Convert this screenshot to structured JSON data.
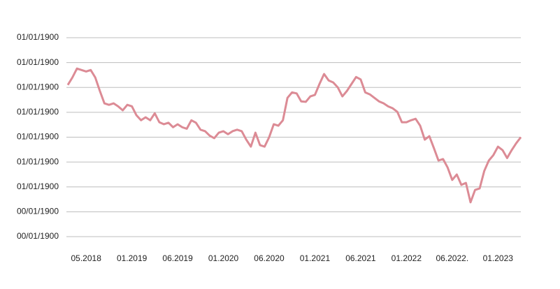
{
  "chart_data": {
    "type": "line",
    "categories": [
      null,
      null,
      null,
      null,
      "05.2018",
      null,
      null,
      null,
      null,
      null,
      null,
      null,
      null,
      null,
      "01.2019",
      null,
      null,
      null,
      null,
      null,
      null,
      null,
      null,
      null,
      "06.2019",
      null,
      null,
      null,
      null,
      null,
      null,
      null,
      null,
      null,
      "01.2020",
      null,
      null,
      null,
      null,
      null,
      null,
      null,
      null,
      null,
      "06.2020",
      null,
      null,
      null,
      null,
      null,
      null,
      null,
      null,
      null,
      "01.2021",
      null,
      null,
      null,
      null,
      null,
      null,
      null,
      null,
      null,
      "06.2021",
      null,
      null,
      null,
      null,
      null,
      null,
      null,
      null,
      null,
      "01.2022",
      null,
      null,
      null,
      null,
      null,
      null,
      null,
      null,
      null,
      "06.2022.",
      null,
      null,
      null,
      null,
      null,
      null,
      null,
      null,
      null,
      "01.2023",
      null,
      null,
      null,
      null,
      null
    ],
    "values": [
      1.205,
      1.22,
      1.238,
      1.235,
      1.232,
      1.235,
      1.22,
      1.193,
      1.168,
      1.165,
      1.168,
      1.162,
      1.154,
      1.165,
      1.162,
      1.144,
      1.134,
      1.14,
      1.134,
      1.148,
      1.13,
      1.126,
      1.129,
      1.12,
      1.126,
      1.12,
      1.117,
      1.134,
      1.129,
      1.115,
      1.112,
      1.103,
      1.098,
      1.109,
      1.112,
      1.106,
      1.112,
      1.115,
      1.112,
      1.095,
      1.081,
      1.109,
      1.084,
      1.081,
      1.1,
      1.126,
      1.123,
      1.134,
      1.179,
      1.19,
      1.188,
      1.172,
      1.171,
      1.182,
      1.185,
      1.207,
      1.227,
      1.214,
      1.21,
      1.2,
      1.182,
      1.193,
      1.207,
      1.221,
      1.216,
      1.19,
      1.186,
      1.179,
      1.172,
      1.168,
      1.162,
      1.158,
      1.151,
      1.13,
      1.13,
      1.134,
      1.137,
      1.123,
      1.095,
      1.102,
      1.078,
      1.053,
      1.056,
      1.039,
      1.014,
      1.025,
      1.004,
      1.008,
      0.969,
      0.994,
      0.997,
      1.032,
      1.053,
      1.064,
      1.081,
      1.074,
      1.058,
      1.074,
      1.088,
      1.1
    ],
    "color": "#dc8b95",
    "ylim": [
      0.9,
      1.3
    ],
    "yticks": [
      {
        "value": 0.9,
        "label": "00/01/1900"
      },
      {
        "value": 0.95,
        "label": "00/01/1900"
      },
      {
        "value": 1.0,
        "label": "01/01/1900"
      },
      {
        "value": 1.05,
        "label": "01/01/1900"
      },
      {
        "value": 1.1,
        "label": "01/01/1900"
      },
      {
        "value": 1.15,
        "label": "01/01/1900"
      },
      {
        "value": 1.2,
        "label": "01/01/1900"
      },
      {
        "value": 1.25,
        "label": "01/01/1900"
      },
      {
        "value": 1.3,
        "label": "01/01/1900"
      }
    ],
    "grid": true
  }
}
